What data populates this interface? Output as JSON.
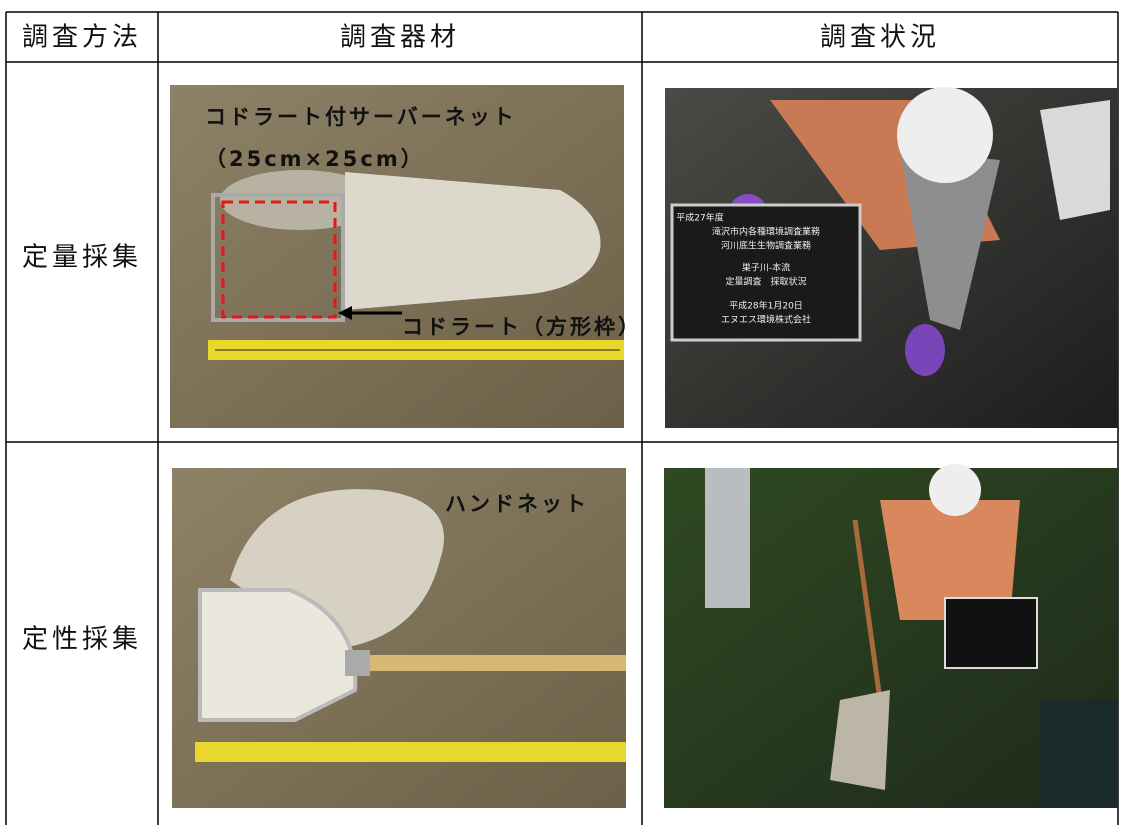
{
  "table": {
    "header": [
      "調査方法",
      "調査器材",
      "調査状況"
    ],
    "rows": [
      {
        "method": "定量採集",
        "equipment_labels": [
          "コドラート付サーバーネット",
          "（25cm×25cm）",
          "コドラート（方形枠）"
        ],
        "sign": [
          "平成27年度",
          "滝沢市内各種環境調査業務",
          "河川底生生物調査業務",
          "巣子川-本流",
          "定量調査　採取状況",
          "平成28年1月20日",
          "エヌエス環境株式会社"
        ]
      },
      {
        "method": "定性採集",
        "equipment_labels": [
          "ハンドネット"
        ]
      }
    ]
  }
}
